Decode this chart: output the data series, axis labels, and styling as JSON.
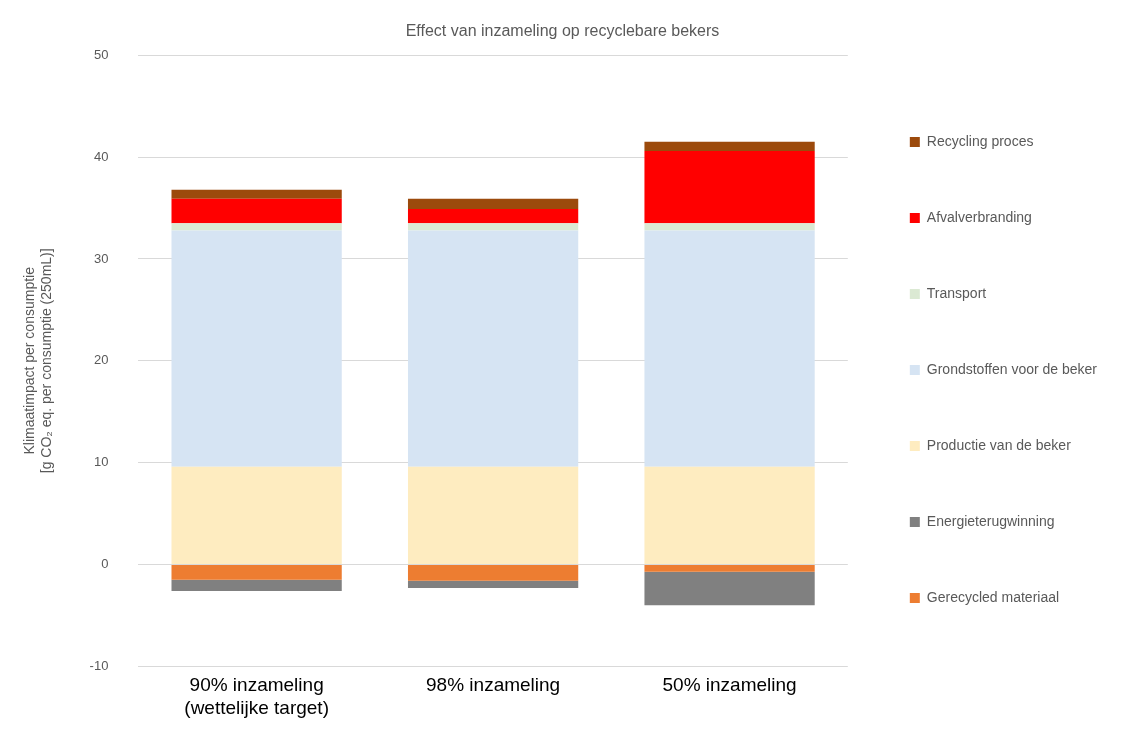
{
  "chart_data": {
    "type": "bar",
    "stacked": true,
    "title": "Effect van inzameling op recyclebare bekers",
    "ylabel": "Klimaatimpact per consumptie [g CO₂ eq. per consumptie (250mL)]",
    "categories": [
      "90% inzameling (wettelijke target)",
      "98% inzameling",
      "50% inzameling"
    ],
    "ylim": [
      -10,
      50
    ],
    "yticks": [
      -10,
      0,
      10,
      20,
      30,
      40,
      50
    ],
    "grid": "y",
    "legend": "right",
    "series": [
      {
        "name": "Gerecycled materiaal",
        "color": "#ed7d31",
        "values": [
          -1.5,
          -1.6,
          -0.7
        ]
      },
      {
        "name": "Energieterugwinning",
        "color": "#808080",
        "values": [
          -1.1,
          -0.7,
          -3.3
        ]
      },
      {
        "name": "Productie van de beker",
        "color": "#feecc0",
        "values": [
          9.6,
          9.6,
          9.6
        ]
      },
      {
        "name": "Grondstoffen voor de beker",
        "color": "#d6e4f3",
        "values": [
          23.2,
          23.2,
          23.2
        ]
      },
      {
        "name": "Transport",
        "color": "#dbe9d3",
        "values": [
          0.7,
          0.7,
          0.7
        ]
      },
      {
        "name": "Afvalverbranding",
        "color": "#ff0000",
        "values": [
          2.4,
          1.4,
          7.1
        ]
      },
      {
        "name": "Recycling proces",
        "color": "#9c4a0c",
        "values": [
          0.9,
          1.0,
          0.9
        ]
      }
    ]
  }
}
